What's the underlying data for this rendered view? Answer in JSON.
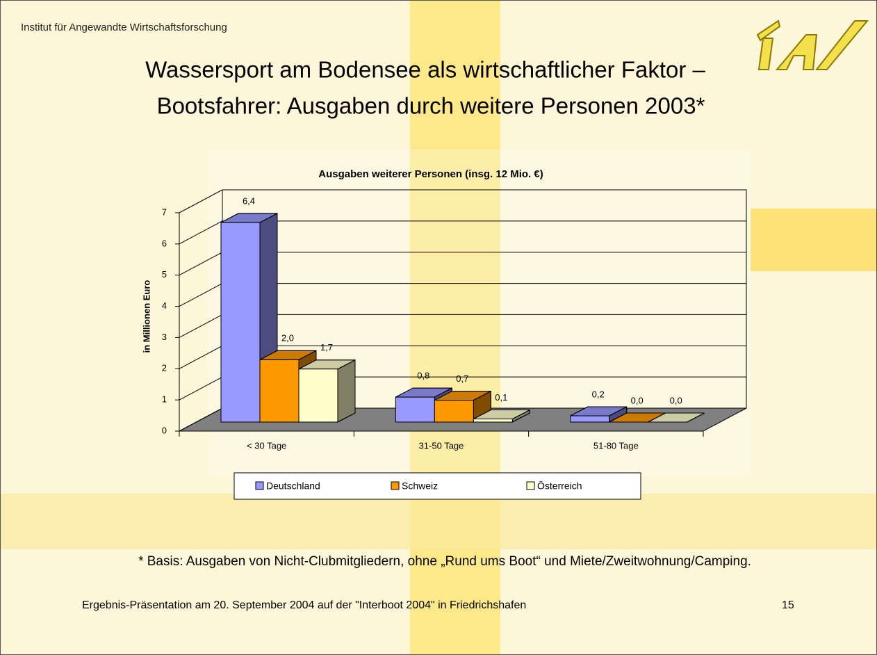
{
  "header": {
    "institute": "Institut für Angewandte Wirtschaftsforschung",
    "title": [
      "Wassersport am Bodensee als wirtschaftlicher Faktor –",
      "Bootsfahrer: Ausgaben durch weitere Personen 2003*"
    ]
  },
  "chart_data": {
    "type": "bar",
    "title": "Ausgaben weiterer Personen (insg. 12 Mio. €)",
    "ylabel": "in Millionen Euro",
    "categories": [
      "< 30 Tage",
      "31-50 Tage",
      "51-80 Tage"
    ],
    "series": [
      {
        "name": "Deutschland",
        "color": "#9999ff",
        "values": [
          6.4,
          0.8,
          0.2
        ],
        "value_labels": [
          "6,4",
          "0,8",
          "0,2"
        ]
      },
      {
        "name": "Schweiz",
        "color": "#ff9900",
        "values": [
          2.0,
          0.7,
          0.0
        ],
        "value_labels": [
          "2,0",
          "0,7",
          "0,0"
        ]
      },
      {
        "name": "Österreich",
        "color": "#ffffcc",
        "values": [
          1.7,
          0.1,
          0.0
        ],
        "value_labels": [
          "1,7",
          "0,1",
          "0,0"
        ]
      }
    ],
    "ylim": [
      0,
      7
    ],
    "yticks": [
      0,
      1,
      2,
      3,
      4,
      5,
      6,
      7
    ],
    "grid": true
  },
  "footnote": "* Basis: Ausgaben von Nicht-Clubmitgliedern, ohne „Rund ums Boot“ und Miete/Zweitwohnung/Camping.",
  "footer": {
    "text": "Ergebnis-Präsentation am 20. September 2004 auf der \"Interboot 2004\" in Friedrichshafen",
    "page": "15"
  }
}
